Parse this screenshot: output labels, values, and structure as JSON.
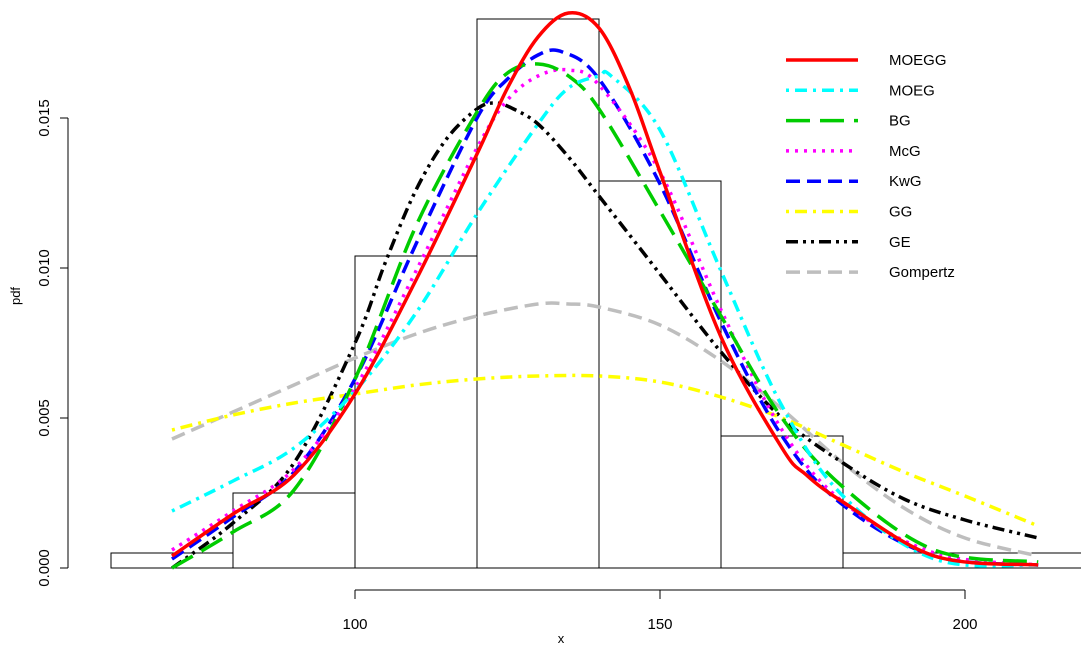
{
  "chart_data": {
    "type": "histogram-with-density-curves",
    "xlabel": "x",
    "ylabel": "pdf",
    "x_ticks": [
      100,
      150,
      200
    ],
    "y_ticks": [
      "0.000",
      "0.005",
      "0.010",
      "0.015"
    ],
    "xlim": [
      60,
      220
    ],
    "ylim": [
      0,
      0.0185
    ],
    "grid": false,
    "legend_position": "top-right",
    "histogram": {
      "bins": [
        {
          "x0": 60,
          "x1": 80,
          "density": 0.0005
        },
        {
          "x0": 80,
          "x1": 100,
          "density": 0.0025
        },
        {
          "x0": 100,
          "x1": 120,
          "density": 0.0104
        },
        {
          "x0": 120,
          "x1": 140,
          "density": 0.0183
        },
        {
          "x0": 140,
          "x1": 160,
          "density": 0.0129
        },
        {
          "x0": 160,
          "x1": 180,
          "density": 0.0044
        },
        {
          "x0": 180,
          "x1": 220,
          "density": 0.0005
        }
      ]
    },
    "series": [
      {
        "name": "MOEGG",
        "color": "#ff0000",
        "dash": "solid",
        "x": [
          70,
          80,
          90,
          100,
          110,
          120,
          125,
          130,
          135,
          140,
          145,
          150,
          160,
          170,
          174,
          180,
          195,
          212
        ],
        "y": [
          0.0004,
          0.0018,
          0.0031,
          0.0058,
          0.0096,
          0.0138,
          0.016,
          0.0177,
          0.0185,
          0.018,
          0.016,
          0.0132,
          0.0077,
          0.004,
          0.0031,
          0.0022,
          0.0004,
          0.0001
        ]
      },
      {
        "name": "MOEG",
        "color": "#00ffff",
        "dash": "dotdash",
        "x": [
          70,
          80,
          90,
          100,
          110,
          120,
          130,
          135,
          140,
          142,
          150,
          160,
          170,
          180,
          195,
          212
        ],
        "y": [
          0.0019,
          0.0029,
          0.004,
          0.0059,
          0.0085,
          0.0118,
          0.0148,
          0.016,
          0.0164,
          0.0164,
          0.0146,
          0.0099,
          0.0054,
          0.0024,
          0.0003,
          0.0001
        ]
      },
      {
        "name": "BG",
        "color": "#00cc00",
        "dash": "longdash",
        "x": [
          70,
          80,
          90,
          100,
          110,
          120,
          125,
          130,
          135,
          140,
          150,
          160,
          170,
          180,
          195,
          212
        ],
        "y": [
          0.0,
          0.0012,
          0.0026,
          0.0063,
          0.0114,
          0.0152,
          0.0165,
          0.0168,
          0.0164,
          0.0153,
          0.0119,
          0.0084,
          0.005,
          0.0027,
          0.0006,
          0.0002
        ]
      },
      {
        "name": "McG",
        "color": "#ff00ff",
        "dash": "dotted",
        "x": [
          70,
          80,
          90,
          100,
          110,
          120,
          125,
          130,
          135,
          140,
          150,
          160,
          170,
          180,
          195,
          212
        ],
        "y": [
          0.0006,
          0.0019,
          0.0033,
          0.006,
          0.0099,
          0.014,
          0.0156,
          0.0164,
          0.0166,
          0.0161,
          0.0132,
          0.0086,
          0.0046,
          0.0022,
          0.0005,
          0.0001
        ]
      },
      {
        "name": "KwG",
        "color": "#0000ff",
        "dash": "dashed",
        "x": [
          70,
          80,
          90,
          100,
          110,
          120,
          125,
          130,
          134,
          140,
          150,
          160,
          170,
          180,
          195,
          212
        ],
        "y": [
          0.0003,
          0.0017,
          0.0032,
          0.0063,
          0.0108,
          0.015,
          0.0163,
          0.0171,
          0.0172,
          0.0163,
          0.0128,
          0.0082,
          0.0044,
          0.0021,
          0.0004,
          0.0001
        ]
      },
      {
        "name": "GG",
        "color": "#ffff00",
        "dash": "dotdash",
        "x": [
          70,
          80,
          90,
          100,
          110,
          120,
          130,
          140,
          150,
          160,
          170,
          180,
          190,
          200,
          212
        ],
        "y": [
          0.0046,
          0.0051,
          0.0055,
          0.0058,
          0.0061,
          0.0063,
          0.0064,
          0.0064,
          0.0062,
          0.0057,
          0.005,
          0.0041,
          0.0032,
          0.0024,
          0.0014
        ]
      },
      {
        "name": "GE",
        "color": "#000000",
        "dash": "twodash",
        "x": [
          70,
          80,
          90,
          100,
          105,
          110,
          115,
          120,
          123,
          126,
          130,
          135,
          140,
          150,
          160,
          170,
          180,
          190,
          200,
          212
        ],
        "y": [
          0.0,
          0.0015,
          0.0035,
          0.0075,
          0.0102,
          0.0126,
          0.0143,
          0.0153,
          0.0155,
          0.0153,
          0.0148,
          0.0137,
          0.0124,
          0.0098,
          0.0072,
          0.005,
          0.0035,
          0.0023,
          0.0016,
          0.001
        ]
      },
      {
        "name": "Gompertz",
        "color": "#bebebe",
        "dash": "dashed",
        "x": [
          70,
          80,
          90,
          100,
          110,
          120,
          130,
          135,
          140,
          150,
          160,
          170,
          180,
          190,
          200,
          212
        ],
        "y": [
          0.0043,
          0.0052,
          0.0061,
          0.007,
          0.0078,
          0.0084,
          0.0088,
          0.0088,
          0.0087,
          0.0081,
          0.0069,
          0.0053,
          0.0035,
          0.002,
          0.001,
          0.0004
        ]
      }
    ]
  }
}
